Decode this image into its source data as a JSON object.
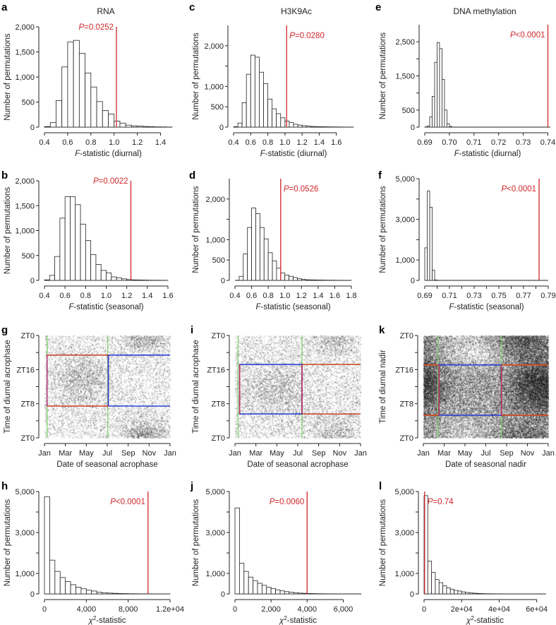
{
  "chart_data": [
    {
      "id": "a",
      "type": "bar",
      "letter": "a",
      "title": "RNA",
      "ylabel": "Number of permutations",
      "xlabel": {
        "italic": "F",
        "text": "-statistic (diurnal)"
      },
      "xlim": [
        0.4,
        1.5
      ],
      "ylim": [
        0,
        2000
      ],
      "xticks": [
        0.4,
        0.6,
        0.8,
        1.0,
        1.2,
        1.4
      ],
      "xtick_labels": [
        "0.4",
        "0.6",
        "0.8",
        "1.0",
        "1.2",
        "1.4"
      ],
      "yticks": [
        0,
        500,
        1000,
        1500,
        2000
      ],
      "ytick_labels": [
        "0",
        "500",
        "1,000",
        "1,500",
        "2,000"
      ],
      "bin_start": 0.4,
      "bin_width": 0.05,
      "counts": [
        10,
        90,
        530,
        1200,
        1700,
        1730,
        1470,
        1080,
        800,
        510,
        330,
        260,
        120,
        80,
        40,
        25,
        20,
        12,
        8,
        5,
        4,
        2
      ],
      "observed": 1.02,
      "p_label": {
        "symbol": "P",
        "text": "=0.0252"
      }
    },
    {
      "id": "c",
      "type": "bar",
      "letter": "c",
      "title": "H3K9Ac",
      "ylabel": "Number of permutations",
      "xlabel": {
        "italic": "F",
        "text": "-statistic (diurnal)"
      },
      "xlim": [
        0.4,
        1.8
      ],
      "ylim": [
        0,
        2500
      ],
      "xticks": [
        0.4,
        0.6,
        0.8,
        1.0,
        1.2,
        1.4,
        1.6
      ],
      "xtick_labels": [
        "0.4",
        "0.6",
        "0.8",
        "1.0",
        "1.2",
        "1.4",
        "1.6"
      ],
      "yticks": [
        0,
        500,
        1000,
        1500,
        2000
      ],
      "ytick_labels": [
        "0",
        "500",
        "1,000",
        "",
        "2,000"
      ],
      "bin_start": 0.4,
      "bin_width": 0.05,
      "counts": [
        10,
        100,
        600,
        1300,
        1770,
        1720,
        1350,
        1070,
        690,
        450,
        330,
        230,
        150,
        110,
        70,
        50,
        35,
        25,
        15,
        12,
        10,
        8,
        6,
        5,
        4,
        3,
        2,
        1
      ],
      "observed": 1.02,
      "p_label": {
        "symbol": "P",
        "text": "=0.0280"
      }
    },
    {
      "id": "e",
      "type": "bar",
      "letter": "e",
      "title": "DNA methylation",
      "ylabel": "Number of permutations",
      "xlabel": {
        "italic": "F",
        "text": "-statistic (diurnal)"
      },
      "xlim": [
        0.69,
        0.741
      ],
      "ylim": [
        0,
        3000
      ],
      "xticks": [
        0.69,
        0.7,
        0.71,
        0.72,
        0.73,
        0.74
      ],
      "xtick_labels": [
        "0.69",
        "0.70",
        "0.71",
        "0.72",
        "0.73",
        "0.74"
      ],
      "yticks": [
        0,
        500,
        1000,
        1500,
        2000,
        2500
      ],
      "ytick_labels": [
        "0",
        "500",
        "",
        "1,500",
        "",
        "2,500"
      ],
      "bin_start": 0.69,
      "bin_width": 0.001,
      "counts": [
        5,
        30,
        300,
        900,
        1900,
        2480,
        2300,
        1400,
        500,
        100,
        20
      ],
      "observed": 0.74,
      "p_label": {
        "symbol": "P",
        "text": "<0.0001"
      }
    },
    {
      "id": "b",
      "type": "bar",
      "letter": "b",
      "ylabel": "Number of permutations",
      "xlabel": {
        "italic": "F",
        "text": "-statistic (seasonal)"
      },
      "xlim": [
        0.4,
        1.6
      ],
      "ylim": [
        0,
        2000
      ],
      "xticks": [
        0.4,
        0.6,
        0.8,
        1.0,
        1.2,
        1.4,
        1.6
      ],
      "xtick_labels": [
        "0.4",
        "0.6",
        "0.8",
        "1.0",
        "1.2",
        "1.4",
        "1.6"
      ],
      "yticks": [
        0,
        500,
        1000,
        1500,
        2000
      ],
      "ytick_labels": [
        "0",
        "500",
        "1,000",
        "1,500",
        "2,000"
      ],
      "bin_start": 0.4,
      "bin_width": 0.05,
      "counts": [
        10,
        100,
        480,
        1250,
        1680,
        1680,
        1520,
        1130,
        800,
        520,
        320,
        200,
        150,
        70,
        50,
        30,
        15,
        10,
        8,
        6,
        4,
        3,
        2,
        1
      ],
      "observed": 1.24,
      "p_label": {
        "symbol": "P",
        "text": "=0.0022"
      }
    },
    {
      "id": "d",
      "type": "bar",
      "letter": "d",
      "ylabel": "Number of permutations",
      "xlabel": {
        "italic": "F",
        "text": "-statistic (seasonal)"
      },
      "xlim": [
        0.4,
        1.8
      ],
      "ylim": [
        0,
        2500
      ],
      "xticks": [
        0.4,
        0.6,
        0.8,
        1.0,
        1.2,
        1.4,
        1.6,
        1.8
      ],
      "xtick_labels": [
        "0.4",
        "0.6",
        "0.8",
        "1.0",
        "1.2",
        "1.4",
        "1.6",
        "1.8"
      ],
      "yticks": [
        0,
        500,
        1000,
        1500,
        2000
      ],
      "ytick_labels": [
        "0",
        "500",
        "1,000",
        "",
        "2,000"
      ],
      "bin_start": 0.4,
      "bin_width": 0.05,
      "counts": [
        0,
        100,
        650,
        1300,
        1780,
        1640,
        1300,
        1020,
        680,
        480,
        300,
        180,
        130,
        100,
        70,
        40,
        25,
        15,
        12,
        10,
        8,
        6,
        5,
        4,
        3,
        2,
        1,
        1
      ],
      "observed": 0.95,
      "p_label": {
        "symbol": "P",
        "text": "=0.0526"
      }
    },
    {
      "id": "f",
      "type": "bar",
      "letter": "f",
      "ylabel": "Number of permutations",
      "xlabel": {
        "italic": "F",
        "text": "-statistic (seasonal)"
      },
      "xlim": [
        0.69,
        0.79
      ],
      "ylim": [
        0,
        5000
      ],
      "xticks": [
        0.69,
        0.7,
        0.71,
        0.72,
        0.73,
        0.74,
        0.75,
        0.76,
        0.77,
        0.78,
        0.79
      ],
      "xtick_labels": [
        "0.69",
        "",
        "0.71",
        "",
        "0.73",
        "",
        "0.75",
        "",
        "0.77",
        "",
        "0.79"
      ],
      "yticks": [
        0,
        1000,
        2000,
        3000,
        4000,
        5000
      ],
      "ytick_labels": [
        "0",
        "1,000",
        "",
        "3,000",
        "",
        "5,000"
      ],
      "bin_start": 0.69,
      "bin_width": 0.002,
      "counts": [
        1600,
        4400,
        3600,
        500,
        20
      ],
      "observed": 0.7826,
      "p_label": {
        "symbol": "P",
        "text": "<0.0001"
      }
    },
    {
      "id": "g",
      "type": "scatter",
      "letter": "g",
      "ylabel": "Time of diurnal acrophase",
      "xlabel": "Date of seasonal acrophase",
      "xlim": [
        0,
        12
      ],
      "ylim": [
        0,
        24
      ],
      "xticks": [
        0,
        2,
        4,
        6,
        8,
        10,
        12
      ],
      "xtick_labels": [
        "Jan",
        "Mar",
        "May",
        "Jul",
        "Sep",
        "Nov",
        "Jan"
      ],
      "yticks": [
        0,
        4,
        8,
        12,
        16,
        20,
        24
      ],
      "ytick_labels": [
        "ZT0",
        "",
        "ZT8",
        "",
        "ZT16",
        "",
        "ZT0"
      ],
      "vertical_lines": [
        0.25,
        6.05
      ],
      "vertical_color": "#7ccf6a",
      "box": {
        "x": [
          0.25,
          6.1
        ],
        "y": [
          7.45,
          19.4
        ],
        "color": "#d0452c",
        "left_color": "#b03a7a"
      },
      "outer": {
        "x": [
          6.1,
          12
        ],
        "y": [
          7.45,
          19.4
        ],
        "color": "#2b3fd6"
      },
      "background": 0.25,
      "clusters": [
        {
          "x": 3.5,
          "y": 14,
          "sx": 1.6,
          "sy": 3.5,
          "w": 0.6
        },
        {
          "x": 9.5,
          "y": 0.5,
          "sx": 1.3,
          "sy": 2.5,
          "w": 1.0
        }
      ]
    },
    {
      "id": "i",
      "type": "scatter",
      "letter": "i",
      "ylabel": "Time of diurnal acrophase",
      "xlabel": "Date of seasonal acrophase",
      "xlim": [
        0,
        12
      ],
      "ylim": [
        0,
        24
      ],
      "xticks": [
        0,
        2,
        4,
        6,
        8,
        10,
        12
      ],
      "xtick_labels": [
        "Jan",
        "Mar",
        "May",
        "Jul",
        "Sep",
        "Nov",
        "Jan"
      ],
      "yticks": [
        0,
        4,
        8,
        12,
        16,
        20,
        24
      ],
      "ytick_labels": [
        "ZT0",
        "",
        "ZT8",
        "",
        "ZT16",
        "",
        "ZT0"
      ],
      "vertical_lines": [
        0.3,
        6.4
      ],
      "vertical_color": "#7ccf6a",
      "box": {
        "x": [
          0.45,
          6.4
        ],
        "y": [
          5.6,
          17.2
        ],
        "color": "#2b3fd6",
        "left_color": "#c0305a"
      },
      "outer": {
        "x": [
          6.4,
          12
        ],
        "y": [
          5.6,
          17.2
        ],
        "color": "#c8502a"
      },
      "background": 0.3,
      "clusters": [
        {
          "x": 4,
          "y": 11,
          "sx": 2,
          "sy": 3.5,
          "w": 0.5
        },
        {
          "x": 9.5,
          "y": 23,
          "sx": 1.2,
          "sy": 2,
          "w": 0.6
        },
        {
          "x": 9.5,
          "y": 3,
          "sx": 1.2,
          "sy": 2,
          "w": 0.3
        }
      ]
    },
    {
      "id": "k",
      "type": "scatter",
      "letter": "k",
      "ylabel": "Time of diurnal nadir",
      "xlabel": "Date of seasonal nadir",
      "xlim": [
        0,
        12
      ],
      "ylim": [
        0,
        24
      ],
      "xticks": [
        0,
        2,
        4,
        6,
        8,
        10,
        12
      ],
      "xtick_labels": [
        "Jan",
        "Mar",
        "May",
        "Jul",
        "Sep",
        "Nov",
        "Jan"
      ],
      "yticks": [
        0,
        4,
        8,
        12,
        16,
        20,
        24
      ],
      "ytick_labels": [
        "ZT0",
        "",
        "ZT8",
        "",
        "ZT16",
        "",
        "ZT0"
      ],
      "vertical_lines": [
        1.4,
        7.5
      ],
      "vertical_color": "#7ccf6a",
      "box": {
        "x": [
          1.5,
          7.5
        ],
        "y": [
          5.3,
          17.1
        ],
        "color": "#2b3fd6",
        "left_color": "#c0305a"
      },
      "outer": {
        "x": [
          0,
          12
        ],
        "y": [
          5.3,
          17.1
        ],
        "color": "#c8502a"
      },
      "background": 0.5,
      "clusters": [
        {
          "x": 10.5,
          "y": 12,
          "sx": 1.5,
          "sy": 4,
          "w": 0.8
        },
        {
          "x": 0.2,
          "y": 13,
          "sx": 1.2,
          "sy": 4,
          "w": 0.6
        },
        {
          "x": 9.5,
          "y": 23,
          "sx": 1.8,
          "sy": 2.5,
          "w": 0.6
        },
        {
          "x": 5,
          "y": 20,
          "sx": 2,
          "sy": 2.5,
          "w": -0.35
        },
        {
          "x": 4,
          "y": 2,
          "sx": 2,
          "sy": 2,
          "w": -0.2
        }
      ]
    },
    {
      "id": "h",
      "type": "bar",
      "letter": "h",
      "ylabel": "Number of permutations",
      "xlabel": {
        "italic": "χ",
        "sup": "2",
        "text": "-statistic"
      },
      "xlim": [
        0,
        12000
      ],
      "ylim": [
        0,
        5000
      ],
      "xticks": [
        0,
        4000,
        8000,
        12000
      ],
      "xtick_labels": [
        "0",
        "4,000",
        "8,000",
        "1.2e+04"
      ],
      "yticks": [
        0,
        1000,
        2000,
        3000,
        4000,
        5000
      ],
      "ytick_labels": [
        "0",
        "1,000",
        "",
        "3,000",
        "",
        "5,000"
      ],
      "bin_start": 0,
      "bin_width": 500,
      "counts": [
        4750,
        1650,
        1100,
        800,
        600,
        450,
        330,
        250,
        180,
        140,
        80,
        60,
        40,
        30,
        20,
        15,
        10,
        8,
        5,
        4,
        3,
        2,
        1,
        1
      ],
      "observed": 9900,
      "p_label": {
        "symbol": "P",
        "text": "<0.0001"
      }
    },
    {
      "id": "j",
      "type": "bar",
      "letter": "j",
      "ylabel": "Number of permutations",
      "xlabel": {
        "italic": "χ",
        "sup": "2",
        "text": "-statistic"
      },
      "xlim": [
        0,
        7000
      ],
      "ylim": [
        0,
        5000
      ],
      "xticks": [
        0,
        2000,
        4000,
        6000
      ],
      "xtick_labels": [
        "0",
        "2,000",
        "4,000",
        "6,000"
      ],
      "yticks": [
        0,
        1000,
        2000,
        3000,
        4000,
        5000
      ],
      "ytick_labels": [
        "0",
        "1,000",
        "",
        "3,000",
        "",
        "5,000"
      ],
      "bin_start": 0,
      "bin_width": 250,
      "counts": [
        4200,
        1500,
        1100,
        820,
        650,
        520,
        420,
        330,
        260,
        200,
        150,
        110,
        80,
        60,
        40,
        30,
        20,
        15,
        10,
        8,
        6,
        5,
        4,
        3,
        2,
        1,
        1,
        1
      ],
      "observed": 4000,
      "p_label": {
        "symbol": "P",
        "text": "=0.0060"
      }
    },
    {
      "id": "l",
      "type": "bar",
      "letter": "l",
      "ylabel": "Number of permutations",
      "xlabel": {
        "italic": "χ",
        "sup": "2",
        "text": "-statistic"
      },
      "xlim": [
        0,
        65000
      ],
      "ylim": [
        0,
        5000
      ],
      "xticks": [
        0,
        20000,
        40000,
        60000
      ],
      "xtick_labels": [
        "0",
        "2e+04",
        "4e+04",
        "6e+04"
      ],
      "yticks": [
        0,
        1000,
        2000,
        3000,
        4000,
        5000
      ],
      "ytick_labels": [
        "0",
        "1,000",
        "",
        "3,000",
        "",
        "5,000"
      ],
      "bin_start": 0,
      "bin_width": 2000,
      "counts": [
        4800,
        1600,
        1050,
        700,
        550,
        400,
        300,
        230,
        170,
        140,
        100,
        70,
        50,
        35,
        25,
        15,
        10,
        8,
        6,
        5,
        4,
        3,
        2,
        2,
        1,
        1,
        1,
        1,
        1,
        0,
        0,
        0
      ],
      "observed": 300,
      "p_label": {
        "symbol": "P",
        "text": "=0.74"
      }
    }
  ],
  "colors": {
    "observed_line": "#d0262b",
    "bar_fill": "#ffffff",
    "bar_stroke": "#222222"
  }
}
